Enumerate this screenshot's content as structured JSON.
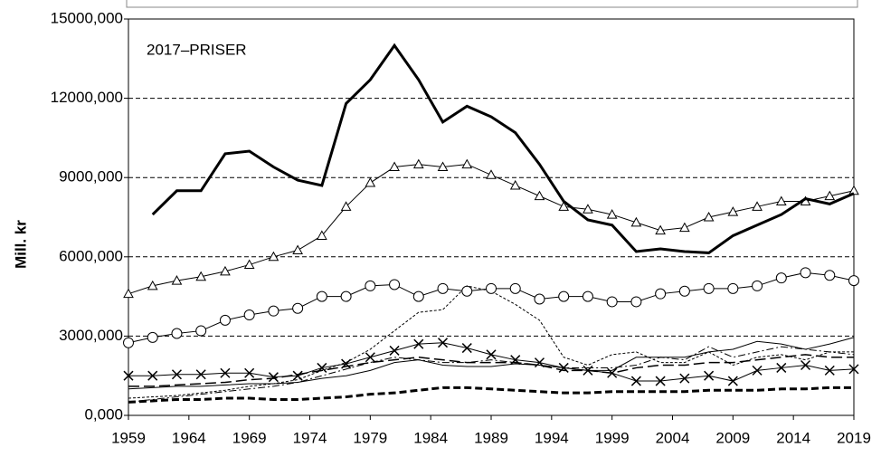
{
  "chart_data": {
    "type": "line",
    "annotation": "2017–PRISER",
    "ylabel": "Mill. kr",
    "x": [
      1959,
      1961,
      1963,
      1965,
      1967,
      1969,
      1971,
      1973,
      1975,
      1977,
      1979,
      1981,
      1983,
      1985,
      1987,
      1989,
      1991,
      1993,
      1995,
      1997,
      1999,
      2001,
      2003,
      2005,
      2007,
      2009,
      2011,
      2013,
      2015,
      2017,
      2019
    ],
    "xlim": [
      1959,
      2019
    ],
    "xticks": [
      1959,
      1964,
      1969,
      1974,
      1979,
      1984,
      1989,
      1994,
      1999,
      2004,
      2009,
      2014,
      2019
    ],
    "ylim": [
      0,
      15000
    ],
    "yticks": [
      {
        "value": 0,
        "label": "0,000"
      },
      {
        "value": 3000,
        "label": "3000,000"
      },
      {
        "value": 6000,
        "label": "6000,000"
      },
      {
        "value": 9000,
        "label": "9000,000"
      },
      {
        "value": 12000,
        "label": "12000,000"
      },
      {
        "value": 15000,
        "label": "15000,000"
      }
    ],
    "grid": true,
    "series": [
      {
        "color": "#000000",
        "width": 3,
        "dash": "none",
        "marker": "none",
        "values": [
          null,
          7600,
          8500,
          8500,
          9900,
          10000,
          9400,
          8900,
          8700,
          11800,
          12700,
          14000,
          12700,
          11100,
          11700,
          11300,
          10700,
          9500,
          8100,
          7400,
          7200,
          6200,
          6300,
          6200,
          6150,
          6800,
          7200,
          7600,
          8200,
          8000,
          8400
        ]
      },
      {
        "color": "#000000",
        "width": 1,
        "dash": "none",
        "marker": "triangle",
        "values": [
          4600,
          4900,
          5100,
          5250,
          5450,
          5700,
          6000,
          6250,
          6800,
          7900,
          8800,
          9400,
          9500,
          9400,
          9500,
          9100,
          8700,
          8300,
          7900,
          7800,
          7600,
          7300,
          7000,
          7100,
          7500,
          7700,
          7900,
          8100,
          8100,
          8300,
          8500
        ]
      },
      {
        "color": "#000000",
        "width": 1,
        "dash": "none",
        "marker": "circle",
        "values": [
          2750,
          2950,
          3100,
          3200,
          3600,
          3800,
          3950,
          4050,
          4500,
          4500,
          4900,
          4950,
          4500,
          4800,
          4700,
          4800,
          4800,
          4400,
          4500,
          4500,
          4300,
          4300,
          4600,
          4700,
          4800,
          4800,
          4900,
          5200,
          5400,
          5300,
          5100
        ]
      },
      {
        "color": "#000000",
        "width": 1,
        "dash": "none",
        "marker": "cross",
        "values": [
          1500,
          1500,
          1550,
          1550,
          1600,
          1600,
          1450,
          1500,
          1800,
          1950,
          2200,
          2450,
          2700,
          2750,
          2550,
          2300,
          2100,
          2000,
          1800,
          1700,
          1600,
          1300,
          1300,
          1400,
          1500,
          1300,
          1700,
          1800,
          1900,
          1700,
          1750
        ]
      },
      {
        "color": "#000000",
        "width": 1,
        "dash": "3,2",
        "marker": "none",
        "values": [
          650,
          700,
          750,
          850,
          950,
          1100,
          1200,
          1350,
          1700,
          2000,
          2500,
          3200,
          3900,
          4000,
          4900,
          4700,
          4200,
          3600,
          2200,
          1900,
          2300,
          2400,
          2000,
          2000,
          2400,
          1900,
          2200,
          2300,
          2100,
          2400,
          2400
        ]
      },
      {
        "color": "#000000",
        "width": 1,
        "dash": "none",
        "marker": "none",
        "values": [
          1000,
          1050,
          1100,
          1100,
          1150,
          1200,
          1200,
          1250,
          1400,
          1500,
          1700,
          2000,
          2100,
          1900,
          1850,
          1850,
          1950,
          1900,
          1800,
          1700,
          1700,
          2200,
          2200,
          2200,
          2400,
          2500,
          2800,
          2700,
          2500,
          2700,
          2950
        ]
      },
      {
        "color": "#000000",
        "width": 1.5,
        "dash": "12,5",
        "marker": "none",
        "values": [
          1100,
          1100,
          1150,
          1200,
          1250,
          1350,
          1400,
          1550,
          1700,
          1850,
          2000,
          2100,
          2200,
          2100,
          2000,
          2000,
          2000,
          1900,
          1700,
          1700,
          1600,
          1800,
          1900,
          1900,
          2000,
          2000,
          2100,
          2200,
          2300,
          2200,
          2200
        ]
      },
      {
        "color": "#000000",
        "width": 1,
        "dash": "8,3,2,3",
        "marker": "none",
        "values": [
          500,
          600,
          700,
          800,
          900,
          1000,
          1100,
          1250,
          1500,
          1750,
          2000,
          2200,
          2100,
          2000,
          2000,
          2100,
          2000,
          1900,
          1800,
          1800,
          1800,
          1900,
          2200,
          2100,
          2600,
          2200,
          2400,
          2600,
          2500,
          2400,
          2300
        ]
      },
      {
        "color": "#000000",
        "width": 3,
        "dash": "8,4",
        "marker": "none",
        "values": [
          500,
          550,
          600,
          600,
          650,
          650,
          600,
          600,
          650,
          700,
          800,
          850,
          950,
          1050,
          1050,
          1000,
          950,
          900,
          850,
          850,
          900,
          900,
          900,
          900,
          950,
          950,
          950,
          1000,
          1000,
          1050,
          1050
        ]
      }
    ]
  }
}
